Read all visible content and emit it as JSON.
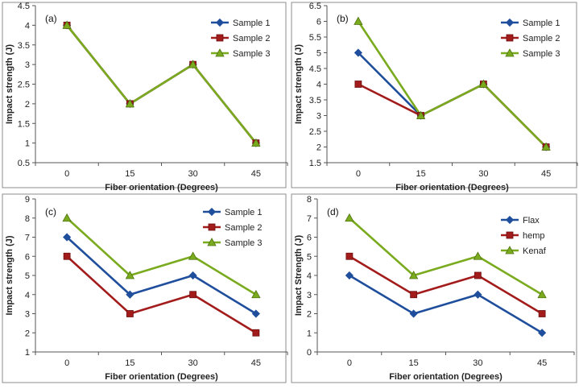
{
  "chart_data": [
    {
      "type": "line",
      "panel_label": "(a)",
      "categories": [
        "0",
        "15",
        "30",
        "45"
      ],
      "xlabel": "Fiber orientation  (Degrees)",
      "ylabel": "Impact strength (J)",
      "ylim": [
        0.5,
        4.5
      ],
      "yticks": [
        "0.5",
        "1",
        "1.5",
        "2",
        "2.5",
        "3",
        "3.5",
        "4",
        "4.5"
      ],
      "legend_position": "top-right",
      "series": [
        {
          "name": "Sample 1",
          "values": [
            4,
            2,
            3,
            1
          ],
          "color": "#1f4e9c",
          "marker": "diamond"
        },
        {
          "name": "Sample 2",
          "values": [
            4,
            2,
            3,
            1
          ],
          "color": "#a31c1c",
          "marker": "square"
        },
        {
          "name": "Sample 3",
          "values": [
            4,
            2,
            3,
            1
          ],
          "color": "#7aab1e",
          "marker": "triangle"
        }
      ]
    },
    {
      "type": "line",
      "panel_label": "(b)",
      "categories": [
        "0",
        "15",
        "30",
        "45"
      ],
      "xlabel": "Fiber orientation  (Degrees)",
      "ylabel": "Impact strength (J)",
      "ylim": [
        1.5,
        6.5
      ],
      "yticks": [
        "1.5",
        "2",
        "2.5",
        "3",
        "3.5",
        "4",
        "4.5",
        "5",
        "5.5",
        "6",
        "6.5"
      ],
      "legend_position": "top-right",
      "series": [
        {
          "name": "Sample 1",
          "values": [
            5,
            3,
            4,
            2
          ],
          "color": "#1f4e9c",
          "marker": "diamond"
        },
        {
          "name": "Sample 2",
          "values": [
            4,
            3,
            4,
            2
          ],
          "color": "#a31c1c",
          "marker": "square"
        },
        {
          "name": "Sample 3",
          "values": [
            6,
            3,
            4,
            2
          ],
          "color": "#7aab1e",
          "marker": "triangle"
        }
      ]
    },
    {
      "type": "line",
      "panel_label": "(c)",
      "categories": [
        "0",
        "15",
        "30",
        "45"
      ],
      "xlabel": "Fiber orientation  (Degrees)",
      "ylabel": "Impact strength (J)",
      "ylim": [
        1,
        9
      ],
      "yticks": [
        "1",
        "2",
        "3",
        "4",
        "5",
        "6",
        "7",
        "8",
        "9"
      ],
      "legend_position": "top-right",
      "series": [
        {
          "name": "Sample 1",
          "values": [
            7,
            4,
            5,
            3
          ],
          "color": "#1f4e9c",
          "marker": "diamond"
        },
        {
          "name": "Sample 2",
          "values": [
            6,
            3,
            4,
            2
          ],
          "color": "#a31c1c",
          "marker": "square"
        },
        {
          "name": "Sample 3",
          "values": [
            8,
            5,
            6,
            4
          ],
          "color": "#7aab1e",
          "marker": "triangle"
        }
      ]
    },
    {
      "type": "line",
      "panel_label": "(d)",
      "categories": [
        "0",
        "15",
        "30",
        "45"
      ],
      "xlabel": "Fiber orientation  (Degrees)",
      "ylabel": "Impact Strength (J)",
      "ylim": [
        0,
        8
      ],
      "yticks": [
        "0",
        "1",
        "2",
        "3",
        "4",
        "5",
        "6",
        "7",
        "8"
      ],
      "legend_position": "top-right",
      "series": [
        {
          "name": "Flax",
          "values": [
            4,
            2,
            3,
            1
          ],
          "color": "#1f4e9c",
          "marker": "diamond"
        },
        {
          "name": "hemp",
          "values": [
            5,
            3,
            4,
            2
          ],
          "color": "#a31c1c",
          "marker": "square"
        },
        {
          "name": "Kenaf",
          "values": [
            7,
            4,
            5,
            3
          ],
          "color": "#7aab1e",
          "marker": "triangle"
        }
      ]
    }
  ]
}
